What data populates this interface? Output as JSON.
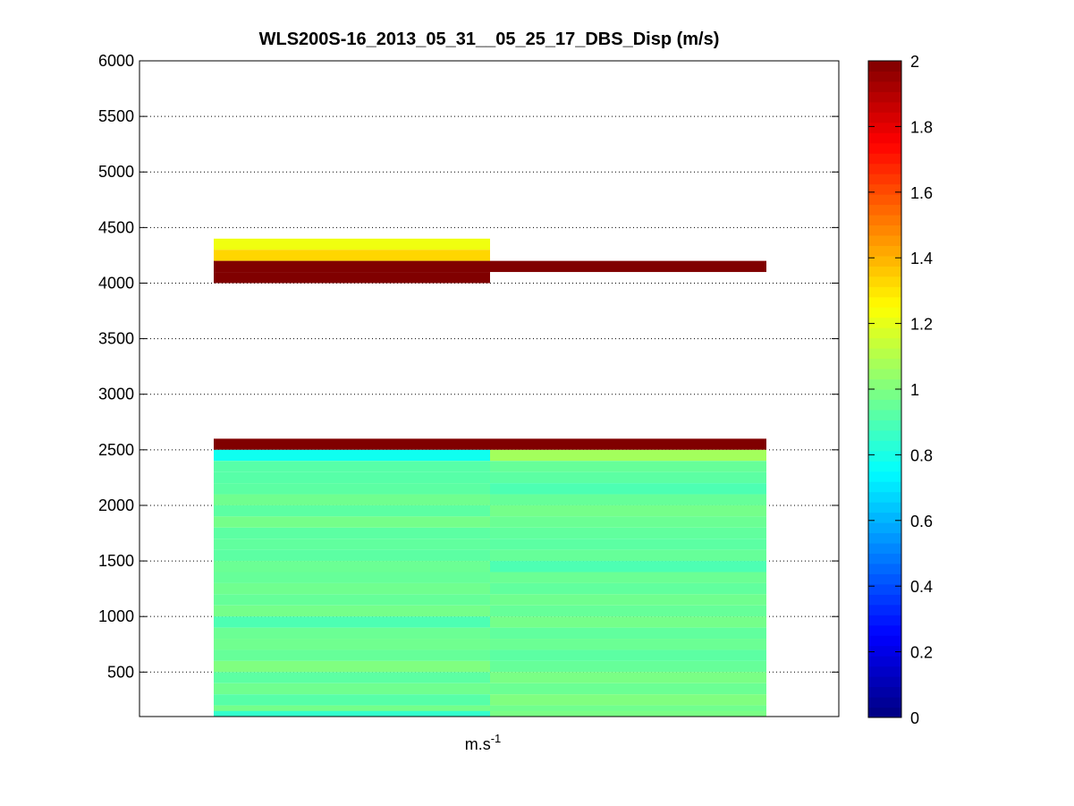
{
  "chart_data": {
    "type": "heatmap",
    "title": "WLS200S-16_2013_05_31__05_25_17_DBS_Disp (m/s)",
    "xlabel": "m.s",
    "xlabel_exponent": "-1",
    "ylabel": "",
    "ylim": [
      100,
      6000
    ],
    "yticks": [
      500,
      1000,
      1500,
      2000,
      2500,
      3000,
      3500,
      4000,
      4500,
      5000,
      5500,
      6000
    ],
    "grid": "y-dotted",
    "colormap": "jet",
    "colorbar": {
      "range": [
        0,
        2
      ],
      "ticks": [
        0,
        0.2,
        0.4,
        0.6,
        0.8,
        1,
        1.2,
        1.4,
        1.6,
        1.8,
        2
      ]
    },
    "range_gate_m": 50,
    "columns": [
      {
        "gates": [
          {
            "alt": 4350,
            "value": 1.22
          },
          {
            "alt": 4250,
            "value": 1.33
          },
          {
            "alt": 4150,
            "value": 2.0
          },
          {
            "alt": 4050,
            "value": 2.0
          },
          {
            "alt": 2550,
            "value": 2.0
          },
          {
            "alt": 2450,
            "value": 0.78
          },
          {
            "alt": 2350,
            "value": 0.92
          },
          {
            "alt": 2250,
            "value": 0.92
          },
          {
            "alt": 2150,
            "value": 0.93
          },
          {
            "alt": 2050,
            "value": 0.97
          },
          {
            "alt": 1950,
            "value": 0.93
          },
          {
            "alt": 1850,
            "value": 0.98
          },
          {
            "alt": 1750,
            "value": 0.93
          },
          {
            "alt": 1650,
            "value": 0.94
          },
          {
            "alt": 1550,
            "value": 0.93
          },
          {
            "alt": 1450,
            "value": 0.96
          },
          {
            "alt": 1350,
            "value": 0.95
          },
          {
            "alt": 1250,
            "value": 0.97
          },
          {
            "alt": 1150,
            "value": 0.95
          },
          {
            "alt": 1050,
            "value": 0.98
          },
          {
            "alt": 950,
            "value": 0.9
          },
          {
            "alt": 850,
            "value": 0.96
          },
          {
            "alt": 750,
            "value": 0.97
          },
          {
            "alt": 650,
            "value": 0.95
          },
          {
            "alt": 550,
            "value": 1.0
          },
          {
            "alt": 450,
            "value": 0.93
          },
          {
            "alt": 350,
            "value": 0.97
          },
          {
            "alt": 250,
            "value": 0.92
          },
          {
            "alt": 150,
            "value": 0.98
          },
          {
            "alt": 100,
            "value": 0.85
          }
        ]
      },
      {
        "gates": [
          {
            "alt": 4150,
            "value": 2.0
          },
          {
            "alt": 2550,
            "value": 2.0
          },
          {
            "alt": 2450,
            "value": 1.07
          },
          {
            "alt": 2350,
            "value": 0.95
          },
          {
            "alt": 2250,
            "value": 0.93
          },
          {
            "alt": 2150,
            "value": 0.9
          },
          {
            "alt": 2050,
            "value": 0.95
          },
          {
            "alt": 1950,
            "value": 0.98
          },
          {
            "alt": 1850,
            "value": 0.96
          },
          {
            "alt": 1750,
            "value": 0.94
          },
          {
            "alt": 1650,
            "value": 0.93
          },
          {
            "alt": 1550,
            "value": 0.95
          },
          {
            "alt": 1450,
            "value": 0.9
          },
          {
            "alt": 1350,
            "value": 0.96
          },
          {
            "alt": 1250,
            "value": 0.94
          },
          {
            "alt": 1150,
            "value": 0.97
          },
          {
            "alt": 1050,
            "value": 0.95
          },
          {
            "alt": 950,
            "value": 0.98
          },
          {
            "alt": 850,
            "value": 0.94
          },
          {
            "alt": 750,
            "value": 0.96
          },
          {
            "alt": 650,
            "value": 0.93
          },
          {
            "alt": 550,
            "value": 0.95
          },
          {
            "alt": 450,
            "value": 0.99
          },
          {
            "alt": 350,
            "value": 0.96
          },
          {
            "alt": 250,
            "value": 1.0
          },
          {
            "alt": 150,
            "value": 0.97
          },
          {
            "alt": 100,
            "value": 0.99
          }
        ]
      }
    ]
  }
}
